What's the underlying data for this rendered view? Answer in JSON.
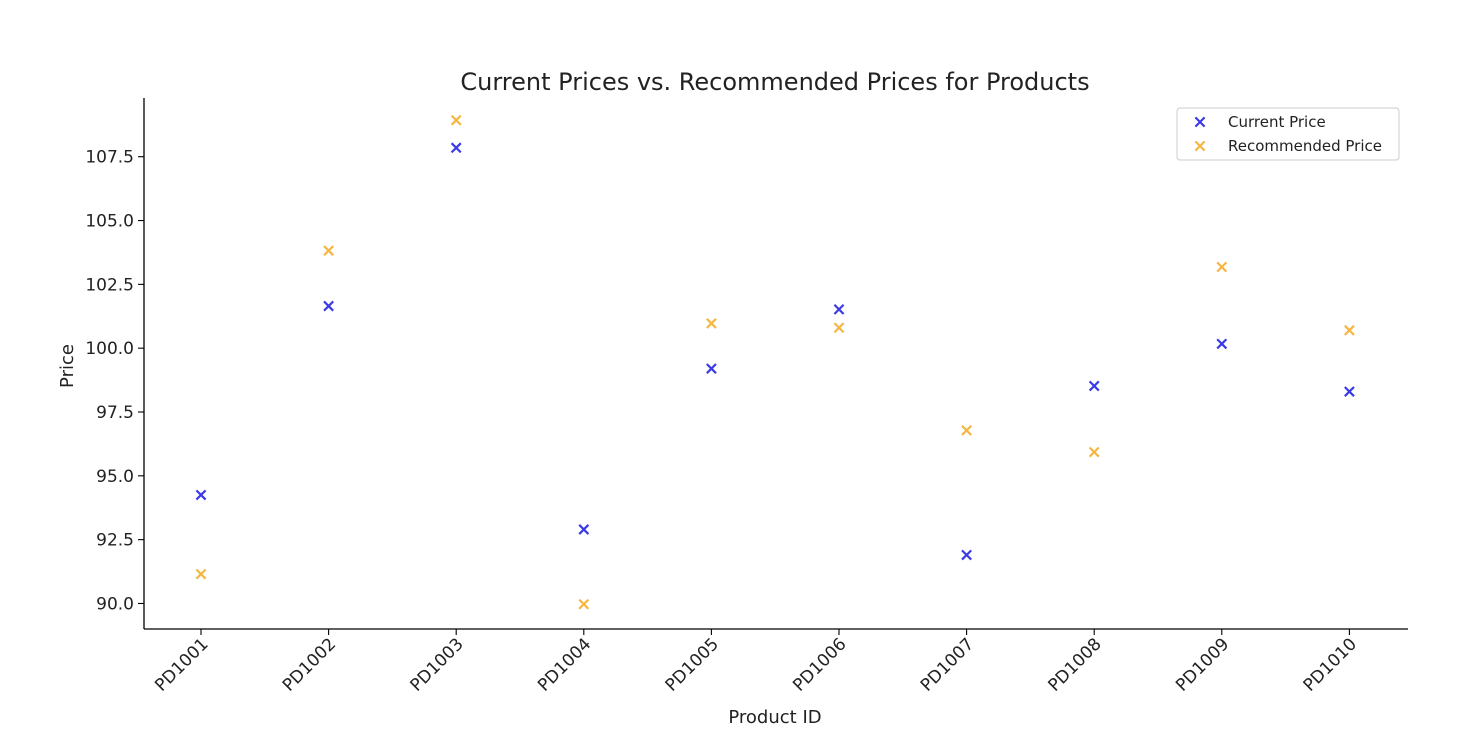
{
  "chart_data": {
    "type": "scatter",
    "title": "Current Prices vs. Recommended Prices for Products",
    "xlabel": "Product ID",
    "ylabel": "Price",
    "categories": [
      "PD1001",
      "PD1002",
      "PD1003",
      "PD1004",
      "PD1005",
      "PD1006",
      "PD1007",
      "PD1008",
      "PD1009",
      "PD1010"
    ],
    "ylim": [
      89.0,
      109.8
    ],
    "yticks": [
      90.0,
      92.5,
      95.0,
      97.5,
      100.0,
      102.5,
      105.0,
      107.5
    ],
    "ytick_labels": [
      "90.0",
      "92.5",
      "95.0",
      "97.5",
      "100.0",
      "102.5",
      "105.0",
      "107.5"
    ],
    "grid": false,
    "legend_position": "top-right",
    "marker": "x",
    "series": [
      {
        "name": "Current Price",
        "color": "#3a3ae6",
        "values": [
          94.25,
          101.65,
          107.85,
          92.9,
          99.2,
          101.52,
          91.9,
          98.52,
          100.17,
          98.3
        ]
      },
      {
        "name": "Recommended Price",
        "color": "#f5b642",
        "values": [
          91.15,
          103.82,
          108.93,
          89.97,
          100.97,
          100.8,
          96.78,
          95.93,
          103.18,
          100.7
        ]
      }
    ]
  }
}
